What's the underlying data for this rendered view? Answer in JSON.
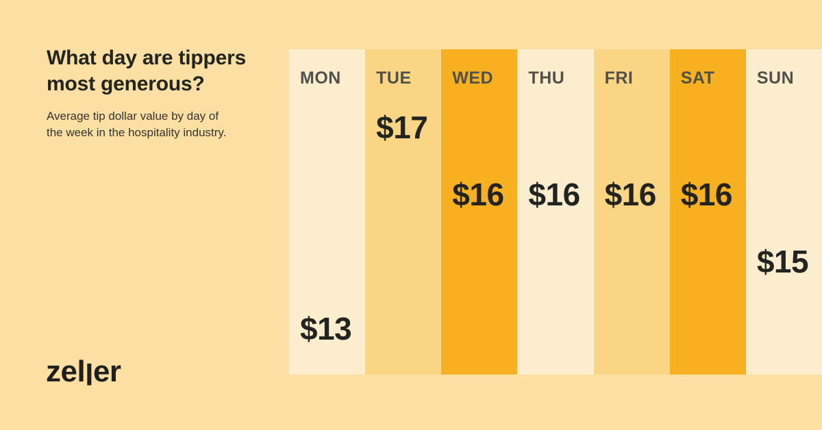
{
  "header": {
    "title_line1": "What day are tippers",
    "title_line2": "most generous?",
    "subtitle_line1": "Average tip dollar value by day of",
    "subtitle_line2": "the week in the hospitality industry."
  },
  "brand": {
    "logo_part1": "zel",
    "logo_part2": "l",
    "logo_part3": "er",
    "logo_color": "#1F1F1C"
  },
  "chart_data": {
    "type": "bar",
    "title": "What day are tippers most generous?",
    "subtitle": "Average tip dollar value by day of the week in the hospitality industry.",
    "categories": [
      "MON",
      "TUE",
      "WED",
      "THU",
      "FRI",
      "SAT",
      "SUN"
    ],
    "values": [
      13,
      17,
      16,
      16,
      16,
      16,
      15
    ],
    "value_labels": [
      "$13",
      "$17",
      "$16",
      "$16",
      "$16",
      "$16",
      "$15"
    ],
    "column_shades": [
      "cream",
      "medium",
      "orange",
      "cream",
      "medium",
      "orange",
      "cream"
    ],
    "palette": {
      "cream": "#FCEDCF",
      "medium": "#FAD583",
      "orange": "#F8B021"
    },
    "background_color": "#FBDFA3",
    "day_label_color": "#515149",
    "value_label_color": "#232320",
    "title_color": "#24241F",
    "subtitle_color": "#35342E",
    "legend": "none",
    "axes": "none"
  }
}
